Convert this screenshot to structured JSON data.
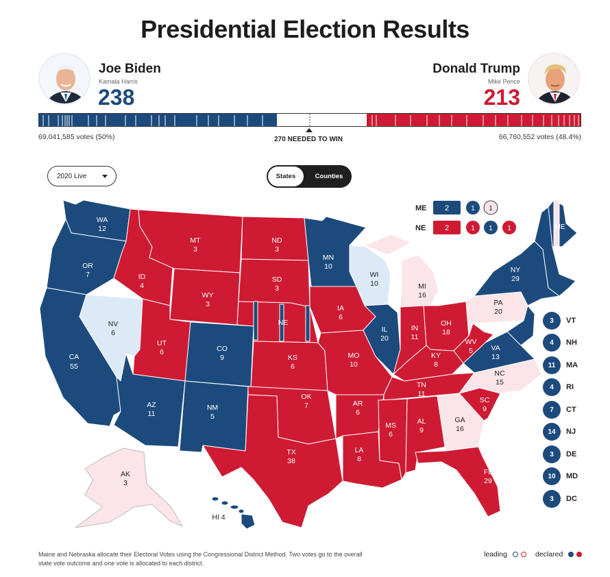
{
  "page": {
    "title": "Presidential Election Results"
  },
  "candidates": {
    "dem": {
      "name": "Joe Biden",
      "running_mate": "Kamala Harris",
      "electoral_votes": "238",
      "popular_votes": "69,041,585 votes (50%)",
      "color": "#1c4a7c"
    },
    "rep": {
      "name": "Donald Trump",
      "running_mate": "Mike Pence",
      "electoral_votes": "213",
      "popular_votes": "66,760,552 votes (48.4%)",
      "color": "#cf1a33"
    }
  },
  "needed_to_win": "270 NEEDED TO WIN",
  "controls": {
    "year_select": "2020 Live",
    "tab_states": "States",
    "tab_counties": "Counties"
  },
  "colors": {
    "dem_declared": "#1c4a7c",
    "rep_declared": "#cf1a33",
    "dem_leading": "#dce9f6",
    "rep_leading": "#fbe5e8"
  },
  "states": [
    {
      "abbr": "WA",
      "ev": "12"
    },
    {
      "abbr": "OR",
      "ev": "7"
    },
    {
      "abbr": "CA",
      "ev": "55"
    },
    {
      "abbr": "NV",
      "ev": "6"
    },
    {
      "abbr": "ID",
      "ev": "4"
    },
    {
      "abbr": "MT",
      "ev": "3"
    },
    {
      "abbr": "WY",
      "ev": "3"
    },
    {
      "abbr": "UT",
      "ev": "6"
    },
    {
      "abbr": "CO",
      "ev": "9"
    },
    {
      "abbr": "AZ",
      "ev": "11"
    },
    {
      "abbr": "NM",
      "ev": "5"
    },
    {
      "abbr": "ND",
      "ev": "3"
    },
    {
      "abbr": "SD",
      "ev": "3"
    },
    {
      "abbr": "NE",
      "ev": ""
    },
    {
      "abbr": "KS",
      "ev": "6"
    },
    {
      "abbr": "OK",
      "ev": "7"
    },
    {
      "abbr": "TX",
      "ev": "38"
    },
    {
      "abbr": "MN",
      "ev": "10"
    },
    {
      "abbr": "IA",
      "ev": "6"
    },
    {
      "abbr": "MO",
      "ev": "10"
    },
    {
      "abbr": "AR",
      "ev": "6"
    },
    {
      "abbr": "LA",
      "ev": "8"
    },
    {
      "abbr": "WI",
      "ev": "10"
    },
    {
      "abbr": "IL",
      "ev": "20"
    },
    {
      "abbr": "MI",
      "ev": "16"
    },
    {
      "abbr": "IN",
      "ev": "11"
    },
    {
      "abbr": "OH",
      "ev": "18"
    },
    {
      "abbr": "KY",
      "ev": "8"
    },
    {
      "abbr": "TN",
      "ev": "11"
    },
    {
      "abbr": "MS",
      "ev": "6"
    },
    {
      "abbr": "AL",
      "ev": "9"
    },
    {
      "abbr": "GA",
      "ev": "16"
    },
    {
      "abbr": "FL",
      "ev": "29"
    },
    {
      "abbr": "SC",
      "ev": "9"
    },
    {
      "abbr": "NC",
      "ev": "15"
    },
    {
      "abbr": "VA",
      "ev": "13"
    },
    {
      "abbr": "WV",
      "ev": "5"
    },
    {
      "abbr": "PA",
      "ev": "20"
    },
    {
      "abbr": "NY",
      "ev": "29"
    },
    {
      "abbr": "ME",
      "ev": ""
    },
    {
      "abbr": "AK",
      "ev": "3"
    },
    {
      "abbr": "HI 4",
      "ev": ""
    }
  ],
  "district_states": {
    "me": {
      "label": "ME",
      "statewide": "2",
      "districts": [
        "1",
        "1"
      ]
    },
    "ne": {
      "label": "NE",
      "statewide": "2",
      "districts": [
        "1",
        "1",
        "1"
      ]
    }
  },
  "small_states": [
    {
      "abbr": "VT",
      "ev": "3"
    },
    {
      "abbr": "NH",
      "ev": "4"
    },
    {
      "abbr": "MA",
      "ev": "11"
    },
    {
      "abbr": "RI",
      "ev": "4"
    },
    {
      "abbr": "CT",
      "ev": "7"
    },
    {
      "abbr": "NJ",
      "ev": "14"
    },
    {
      "abbr": "DE",
      "ev": "3"
    },
    {
      "abbr": "MD",
      "ev": "10"
    },
    {
      "abbr": "DC",
      "ev": "3"
    }
  ],
  "footnote": "Maine and Nebraska allocate their Electoral Votes using the Congressional District Method. Two votes go to the overall state vote outcome and one vote is allocated to each district.",
  "legend": {
    "leading": "leading",
    "declared": "declared"
  }
}
